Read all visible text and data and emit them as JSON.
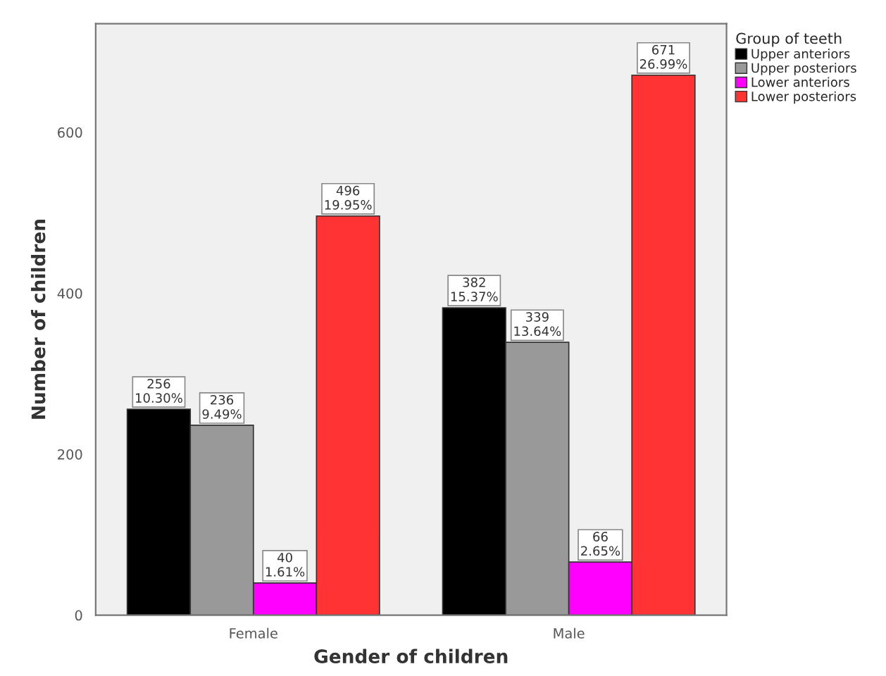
{
  "chart_data": {
    "type": "bar",
    "xlabel": "Gender of children",
    "ylabel": "Number of children",
    "legend_title": "Group of teeth",
    "categories": [
      "Female",
      "Male"
    ],
    "series": [
      {
        "name": "Upper anteriors",
        "color": "#000000",
        "values": [
          256,
          382
        ],
        "value_labels": [
          "256\n10.30%",
          "382\n15.37%"
        ]
      },
      {
        "name": "Upper posteriors",
        "color": "#999999",
        "values": [
          236,
          339
        ],
        "value_labels": [
          "236\n9.49%",
          "339\n13.64%"
        ]
      },
      {
        "name": "Lower anteriors",
        "color": "#ff00ff",
        "values": [
          40,
          66
        ],
        "value_labels": [
          "40\n1.61%",
          "66\n2.65%"
        ]
      },
      {
        "name": "Lower posteriors",
        "color": "#ff3333",
        "values": [
          496,
          671
        ],
        "value_labels": [
          "496\n19.95%",
          "671\n26.99%"
        ]
      }
    ],
    "ylim": [
      0,
      735
    ],
    "yticks": [
      0,
      200,
      400,
      600
    ],
    "grid": false,
    "legend": "top right"
  }
}
